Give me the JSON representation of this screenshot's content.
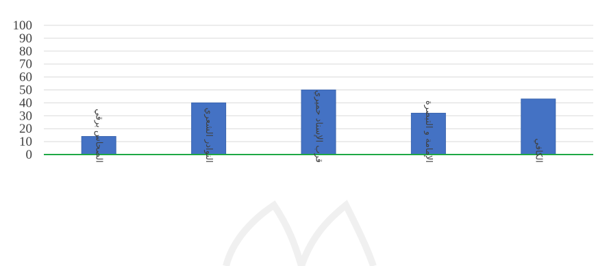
{
  "chart_data": {
    "type": "bar",
    "categories": [
      "الصحاس برقي",
      "النوادر الشعري",
      "قرب الإسناد حميري",
      "الإمامة و التبصرة",
      "الكافي"
    ],
    "series": [
      {
        "values": [
          14,
          40,
          50,
          32,
          43
        ]
      }
    ],
    "ylim": [
      0,
      100
    ],
    "yticks": [
      0,
      10,
      20,
      30,
      40,
      50,
      60,
      70,
      80,
      90,
      100
    ],
    "grid": true,
    "legend": "none",
    "title": "",
    "xlabel": "",
    "ylabel": "",
    "colors": {
      "bar": "#4472C4",
      "bar_stroke": "#3A64AE",
      "baseline": "#1EA844",
      "grid": "#D9D9D9",
      "text": "#404040"
    }
  }
}
